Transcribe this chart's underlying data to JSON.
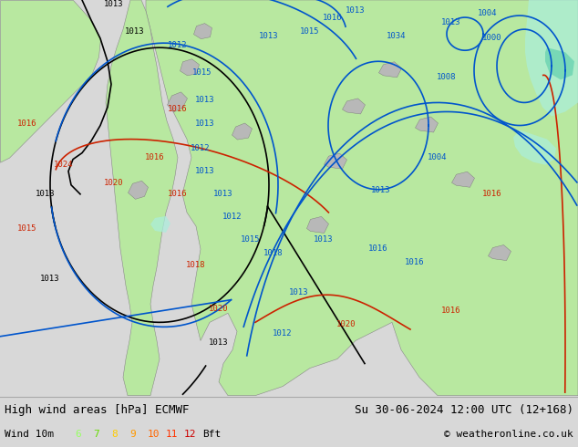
{
  "title_left": "High wind areas [hPa] ECMWF",
  "title_right": "Su 30-06-2024 12:00 UTC (12+168)",
  "subtitle_left": "Wind 10m",
  "subtitle_right": "© weatheronline.co.uk",
  "legend_numbers": [
    "6",
    "7",
    "8",
    "9",
    "10",
    "11",
    "12"
  ],
  "legend_colors": [
    "#99ff66",
    "#66dd00",
    "#ffcc00",
    "#ff9900",
    "#ff6600",
    "#ff3300",
    "#cc0000"
  ],
  "legend_suffix": "Bft",
  "bg_color": "#d8d8d8",
  "ocean_color": "#d8d8d8",
  "land_green": "#b8e8a0",
  "land_gray": "#b8b8b8",
  "isobar_black": "#000000",
  "isobar_blue": "#0055cc",
  "isobar_red": "#cc2200",
  "wind_cyan_light": "#aaeedd",
  "wind_cyan_dark": "#55ccaa",
  "bottom_bg": "#e8e8e8",
  "bottom_text": "#000000",
  "font_size_title": 9,
  "font_size_legend": 8,
  "font_size_label": 6.5
}
